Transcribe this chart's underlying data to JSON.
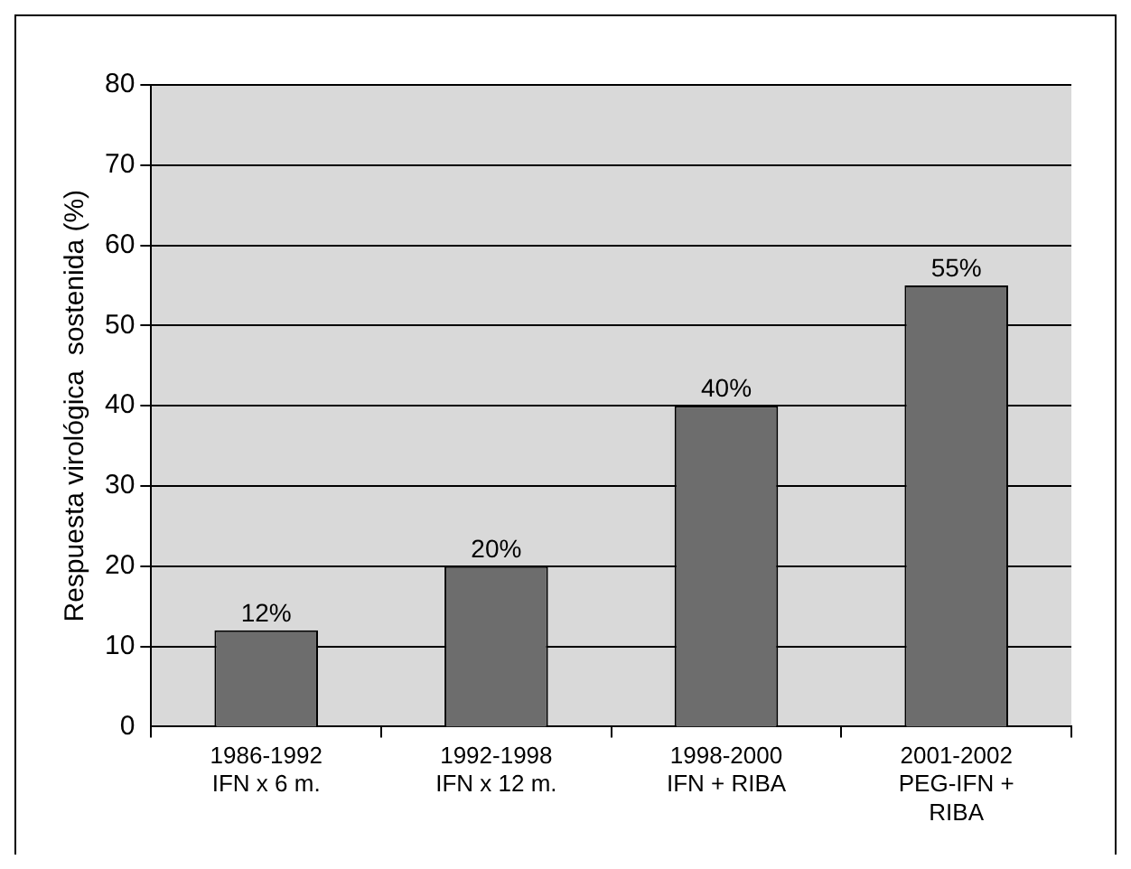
{
  "chart_data": {
    "type": "bar",
    "ylabel": "Respuesta virológica  sostenida (%)",
    "categories": [
      "1986-1992\nIFN x 6 m.",
      "1992-1998\nIFN x 12 m.",
      "1998-2000\nIFN + RIBA",
      "2001-2002\nPEG-IFN +\nRIBA"
    ],
    "values": [
      12,
      20,
      40,
      55
    ],
    "value_labels": [
      "12%",
      "20%",
      "40%",
      "55%"
    ],
    "color": "#6d6d6d",
    "ylim": [
      0,
      80
    ],
    "yticks": [
      0,
      10,
      20,
      30,
      40,
      50,
      60,
      70,
      80
    ],
    "grid": "y"
  }
}
